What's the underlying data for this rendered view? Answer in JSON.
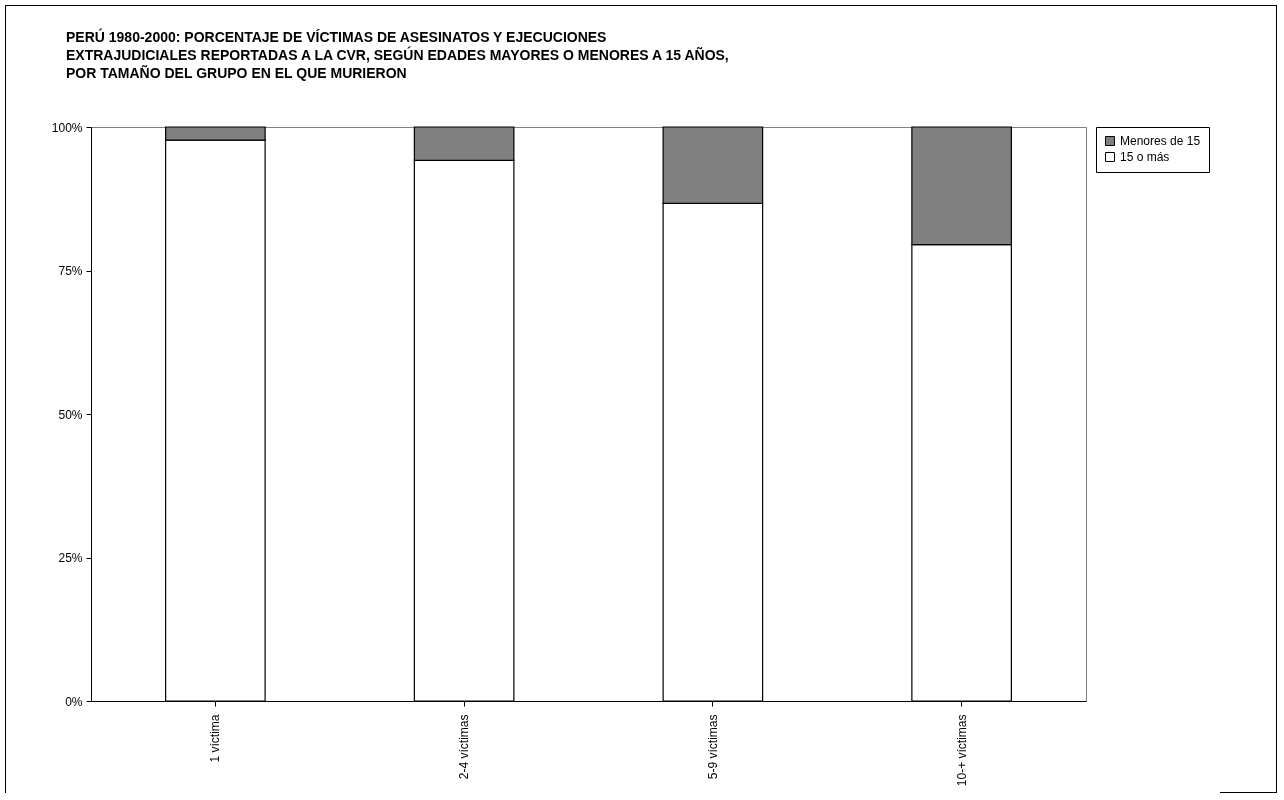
{
  "chart_data": {
    "type": "bar",
    "title": "PERÚ 1980-2000: PORCENTAJE DE VÍCTIMAS DE ASESINATOS Y EJECUCIONES\nEXTRAJUDICIALES REPORTADAS A LA CVR, SEGÚN EDADES MAYORES O MENORES A 15 AÑOS,\nPOR TAMAÑO DEL GRUPO EN EL QUE MURIERON",
    "categories": [
      "1 víctima",
      "2-4 víctimas",
      "5-9 víctimas",
      "10-+ víctimas"
    ],
    "stacked": true,
    "series": [
      {
        "name": "15 o más",
        "color": "#ffffff",
        "values": [
          97.7,
          94.2,
          86.7,
          79.5
        ]
      },
      {
        "name": "Menores de 15",
        "color": "#808080",
        "values": [
          2.3,
          5.8,
          13.3,
          20.5
        ]
      }
    ],
    "ylim": [
      0,
      100
    ],
    "yticks": [
      {
        "value": 0,
        "label": "0%"
      },
      {
        "value": 25,
        "label": "25%"
      },
      {
        "value": 50,
        "label": "50%"
      },
      {
        "value": 75,
        "label": "75%"
      },
      {
        "value": 100,
        "label": "100%"
      }
    ],
    "grid": false,
    "legend": "right"
  }
}
